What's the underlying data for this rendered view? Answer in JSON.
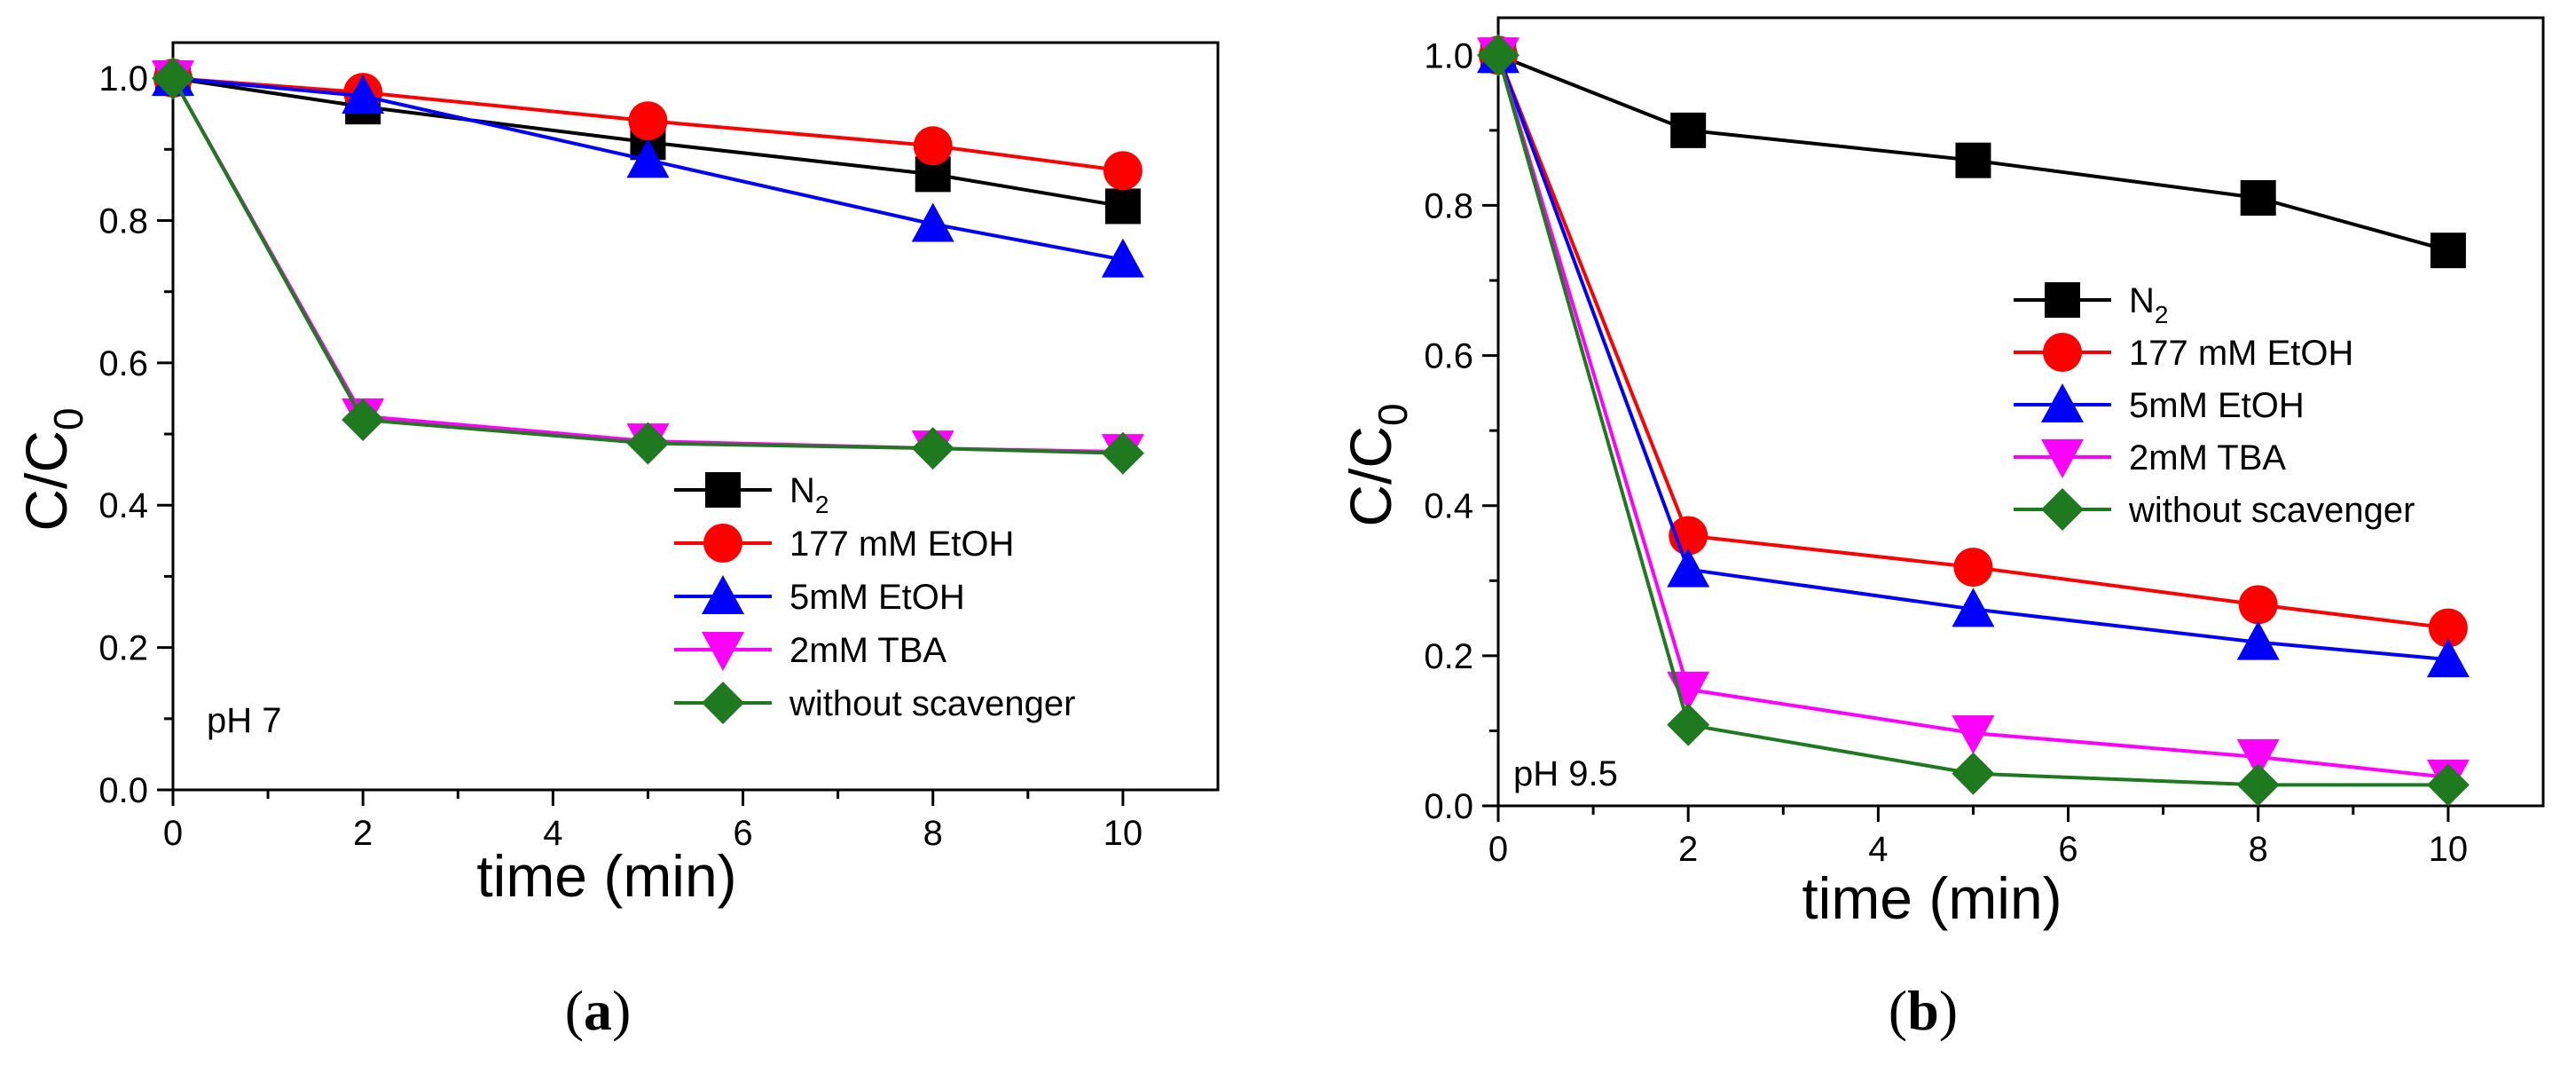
{
  "chart_data": [
    {
      "type": "line",
      "panel_label": "a",
      "annotation": "pH 7",
      "xlabel": "time (min)",
      "ylabel_main": "C/C",
      "ylabel_sub": "0",
      "xlim": [
        0,
        11
      ],
      "ylim": [
        0,
        1.05
      ],
      "xticks": [
        "0",
        "2",
        "4",
        "6",
        "8",
        "10"
      ],
      "yticks": [
        "0.0",
        "0.2",
        "0.4",
        "0.6",
        "0.8",
        "1.0"
      ],
      "x": [
        0,
        2,
        5,
        8,
        10
      ],
      "legend_position": "center-right",
      "series": [
        {
          "name_main": "N",
          "name_sub": "2",
          "color": "#000000",
          "marker": "square",
          "values": [
            1.0,
            0.96,
            0.91,
            0.865,
            0.82
          ]
        },
        {
          "name_main": "177 mM EtOH",
          "name_sub": "",
          "color": "#ff0000",
          "marker": "circle",
          "values": [
            1.0,
            0.98,
            0.94,
            0.905,
            0.87
          ]
        },
        {
          "name_main": "5mM EtOH",
          "name_sub": "",
          "color": "#0000ff",
          "marker": "triangle-up",
          "values": [
            1.0,
            0.975,
            0.885,
            0.795,
            0.745
          ]
        },
        {
          "name_main": "2mM TBA",
          "name_sub": "",
          "color": "#ff00ff",
          "marker": "triangle-down",
          "values": [
            1.0,
            0.525,
            0.49,
            0.48,
            0.475
          ]
        },
        {
          "name_main": "without scavenger",
          "name_sub": "",
          "color": "#1f7a1f",
          "marker": "diamond",
          "values": [
            1.0,
            0.52,
            0.487,
            0.48,
            0.473
          ]
        }
      ]
    },
    {
      "type": "line",
      "panel_label": "b",
      "annotation": "pH 9.5",
      "xlabel": "time (min)",
      "ylabel_main": "C/C",
      "ylabel_sub": "0",
      "xlim": [
        0,
        11
      ],
      "ylim": [
        0,
        1.05
      ],
      "xticks": [
        "0",
        "2",
        "4",
        "6",
        "8",
        "10"
      ],
      "yticks": [
        "0.0",
        "0.2",
        "0.4",
        "0.6",
        "0.8",
        "1.0"
      ],
      "x": [
        0,
        2,
        5,
        8,
        10
      ],
      "legend_position": "center-right",
      "series": [
        {
          "name_main": "N",
          "name_sub": "2",
          "color": "#000000",
          "marker": "square",
          "values": [
            1.0,
            0.9,
            0.86,
            0.81,
            0.74
          ]
        },
        {
          "name_main": "177 mM EtOH",
          "name_sub": "",
          "color": "#ff0000",
          "marker": "circle",
          "values": [
            1.0,
            0.36,
            0.318,
            0.268,
            0.237
          ]
        },
        {
          "name_main": "5mM EtOH",
          "name_sub": "",
          "color": "#0000ff",
          "marker": "triangle-up",
          "values": [
            1.0,
            0.315,
            0.262,
            0.218,
            0.195
          ]
        },
        {
          "name_main": "2mM TBA",
          "name_sub": "",
          "color": "#ff00ff",
          "marker": "triangle-down",
          "values": [
            1.0,
            0.155,
            0.097,
            0.065,
            0.038
          ]
        },
        {
          "name_main": "without scavenger",
          "name_sub": "",
          "color": "#1f7a1f",
          "marker": "diamond",
          "values": [
            1.0,
            0.108,
            0.043,
            0.028,
            0.028
          ]
        }
      ]
    }
  ]
}
